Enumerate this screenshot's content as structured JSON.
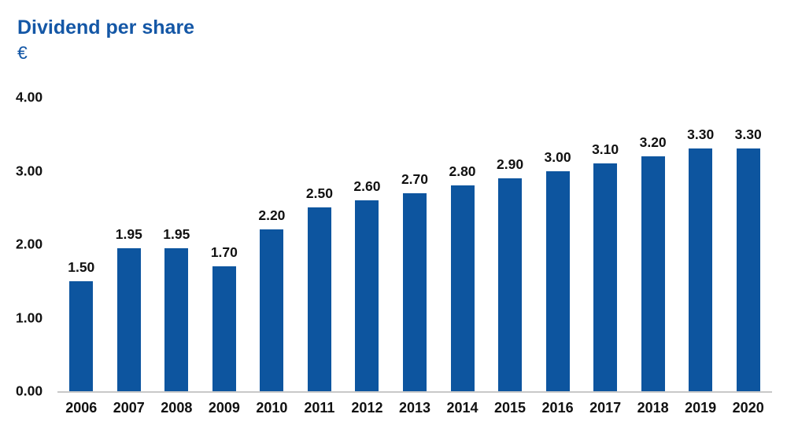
{
  "header": {
    "title": "Dividend per share",
    "currency_label": "€"
  },
  "colors": {
    "title_blue": "#1457a6",
    "bar_blue": "#0d559f",
    "label_black": "#111111",
    "axis_line_gray": "#c8c8c8"
  },
  "chart_data": {
    "type": "bar",
    "title": "Dividend per share",
    "ylabel": "€",
    "xlabel": "",
    "categories": [
      "2006",
      "2007",
      "2008",
      "2009",
      "2010",
      "2011",
      "2012",
      "2013",
      "2014",
      "2015",
      "2016",
      "2017",
      "2018",
      "2019",
      "2020"
    ],
    "values": [
      1.5,
      1.95,
      1.95,
      1.7,
      2.2,
      2.5,
      2.6,
      2.7,
      2.8,
      2.9,
      3.0,
      3.1,
      3.2,
      3.3,
      3.3
    ],
    "value_labels": [
      "1.50",
      "1.95",
      "1.95",
      "1.70",
      "2.20",
      "2.50",
      "2.60",
      "2.70",
      "2.80",
      "2.90",
      "3.00",
      "3.10",
      "3.20",
      "3.30",
      "3.30"
    ],
    "ylim": [
      0,
      4
    ],
    "yticks": [
      {
        "value": 0,
        "label": "0.00"
      },
      {
        "value": 1,
        "label": "1.00"
      },
      {
        "value": 2,
        "label": "2.00"
      },
      {
        "value": 3,
        "label": "3.00"
      },
      {
        "value": 4,
        "label": "4.00"
      }
    ],
    "grid": false,
    "legend": "none",
    "bar_color": "#0d559f"
  }
}
